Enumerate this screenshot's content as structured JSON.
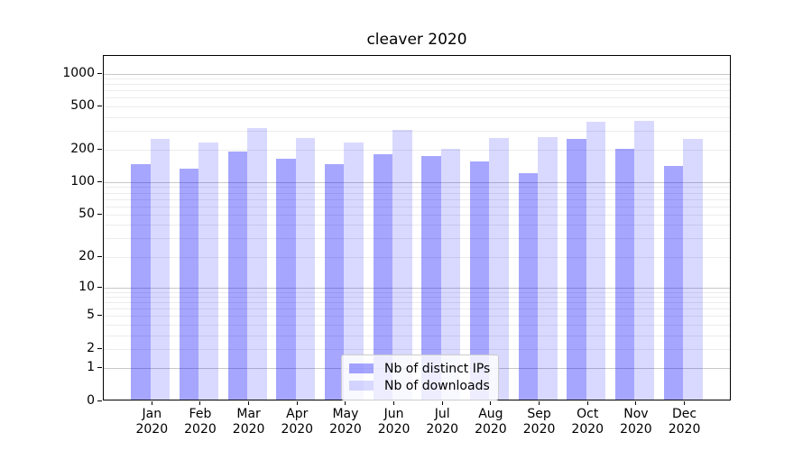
{
  "chart_data": {
    "type": "bar",
    "title": "cleaver 2020",
    "categories": [
      "Jan 2020",
      "Feb 2020",
      "Mar 2020",
      "Apr 2020",
      "May 2020",
      "Jun 2020",
      "Jul 2020",
      "Aug 2020",
      "Sep 2020",
      "Oct 2020",
      "Nov 2020",
      "Dec 2020"
    ],
    "series": [
      {
        "name": "Nb of distinct IPs",
        "color": "rgba(0,0,255,0.35)",
        "color_hex_on_white": "#a6a6ff",
        "values": [
          143,
          130,
          187,
          160,
          142,
          175,
          170,
          150,
          118,
          246,
          198,
          137
        ]
      },
      {
        "name": "Nb of downloads",
        "color": "rgba(0,0,255,0.15)",
        "color_hex_on_white": "#d9d9ff",
        "values": [
          245,
          225,
          305,
          250,
          225,
          298,
          198,
          250,
          252,
          350,
          355,
          245
        ]
      }
    ],
    "xlabel": "",
    "ylabel": "",
    "y_axis": {
      "scale": "log1p",
      "tick_values": [
        0,
        1,
        2,
        5,
        10,
        20,
        50,
        100,
        200,
        500,
        1000
      ],
      "tick_labels": [
        "0",
        "1",
        "2",
        "5",
        "10",
        "20",
        "50",
        "100",
        "200",
        "500",
        "1000"
      ],
      "max": 1464,
      "minor_gridlines": [
        2,
        3,
        4,
        5,
        6,
        7,
        8,
        9,
        20,
        30,
        40,
        50,
        60,
        70,
        80,
        90,
        200,
        300,
        400,
        500,
        600,
        700,
        800,
        900
      ],
      "major_gridlines": [
        1,
        10,
        100,
        1000
      ]
    },
    "grid": true,
    "legend_position": "lower center",
    "colors": {
      "spine": "#000000",
      "minor_grid": "#ececec",
      "major_grid": "#c8c8c8",
      "background": "#ffffff"
    }
  }
}
